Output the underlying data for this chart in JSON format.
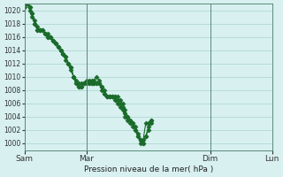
{
  "bg_color": "#d8f0f0",
  "grid_color": "#aad4cc",
  "line_color": "#1a6b2a",
  "marker_color": "#1a6b2a",
  "ylabel_text": "Pression niveau de la mer( hPa )",
  "ylim": [
    999,
    1021
  ],
  "yticks": [
    1000,
    1002,
    1004,
    1006,
    1008,
    1010,
    1012,
    1014,
    1016,
    1018,
    1020
  ],
  "xtick_labels": [
    "Sam",
    "Mar",
    "Dim",
    "Lun"
  ],
  "xtick_positions": [
    0,
    24,
    72,
    96
  ],
  "series": [
    [
      1021,
      1021,
      1020.5,
      1019.5,
      1018,
      1017,
      1017,
      1017,
      1016.5,
      1016,
      1016,
      1015.5,
      1015,
      1014.5,
      1014,
      1013.5,
      1012.5,
      1012,
      1011,
      1010,
      1009.5,
      1009,
      1009,
      1009,
      1009,
      1009,
      1009,
      1009,
      1009,
      1009,
      1008.5,
      1008,
      1007,
      1007,
      1007,
      1007,
      1007,
      1006.5,
      1006,
      1005,
      1004,
      1003.5,
      1003,
      1002,
      1001,
      1000.5,
      1000,
      1001,
      1002,
      1003
    ],
    [
      1021,
      1021,
      1020.5,
      1019.5,
      1018.5,
      1017.5,
      1017,
      1017,
      1016.5,
      1016.5,
      1016,
      1015.5,
      1015,
      1014.5,
      1014,
      1013.5,
      1013,
      1012,
      1011.5,
      1010,
      1009,
      1008.5,
      1008.5,
      1009,
      1009,
      1009,
      1009,
      1009,
      1009,
      1009,
      1008,
      1007.5,
      1007,
      1007,
      1007,
      1006.5,
      1006,
      1005.5,
      1005,
      1004,
      1003.5,
      1003,
      1002.5,
      1002,
      1001,
      1000,
      1000,
      1001,
      1002.5,
      1003.5
    ],
    [
      1020.5,
      1021,
      1020,
      1019,
      1018,
      1017,
      1017,
      1017,
      1016.5,
      1016,
      1016,
      1015.5,
      1015,
      1014.5,
      1014,
      1013.5,
      1013,
      1012,
      1011.5,
      1010,
      1009,
      1008.5,
      1008.5,
      1009,
      1009.5,
      1009.5,
      1009.5,
      1009.5,
      1010,
      1009.5,
      1008.5,
      1007.5,
      1007,
      1007,
      1007,
      1007,
      1006.5,
      1006,
      1005.5,
      1004.5,
      1004,
      1003.5,
      1003,
      1002.5,
      1001.5,
      1000.5,
      1000.5,
      1003,
      1003,
      1003.5
    ]
  ]
}
